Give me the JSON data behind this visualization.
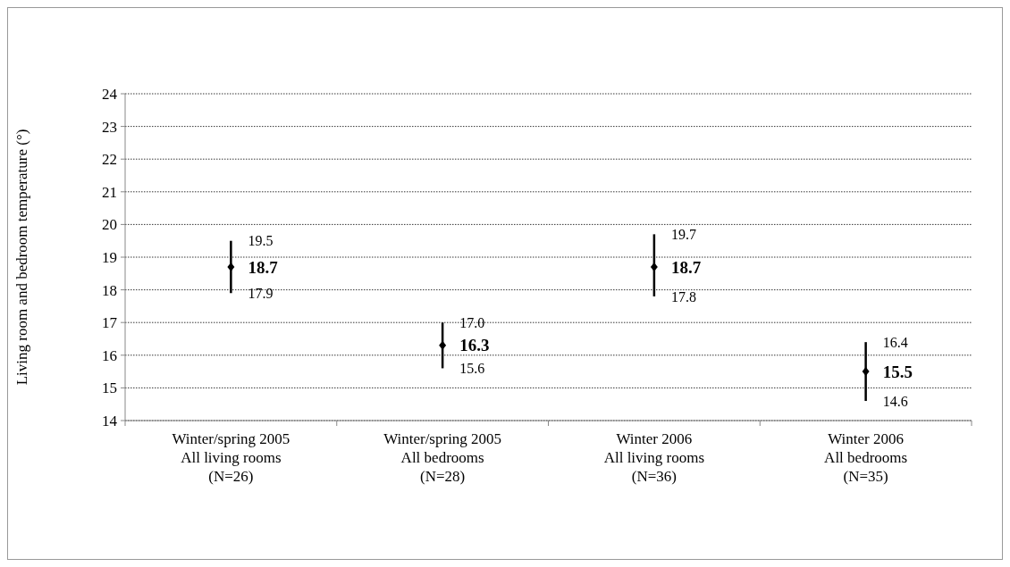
{
  "chart_data": {
    "type": "scatter",
    "categories": [
      "Winter/spring 2005\nAll living rooms\n(N=26)",
      "Winter/spring 2005\nAll bedrooms\n(N=28)",
      "Winter 2006\nAll living rooms\n(N=36)",
      "Winter 2006\nAll bedrooms\n(N=35)"
    ],
    "values": [
      18.7,
      16.3,
      18.7,
      15.5
    ],
    "errors": [
      [
        17.9,
        19.5
      ],
      [
        15.6,
        17.0
      ],
      [
        17.8,
        19.7
      ],
      [
        14.6,
        16.4
      ]
    ],
    "color": "#000000",
    "marker": "diamond",
    "data_labels": true,
    "annotations": [
      {
        "text": "19.5",
        "x": "Winter/spring 2005\nAll living rooms\n(N=26)",
        "y": 19.5
      },
      {
        "text": "17.9",
        "x": "Winter/spring 2005\nAll living rooms\n(N=26)",
        "y": 17.9
      },
      {
        "text": "17.0",
        "x": "Winter/spring 2005\nAll bedrooms\n(N=28)",
        "y": 17.0
      },
      {
        "text": "15.6",
        "x": "Winter/spring 2005\nAll bedrooms\n(N=28)",
        "y": 15.6
      },
      {
        "text": "19.7",
        "x": "Winter 2006\nAll living rooms\n(N=36)",
        "y": 19.7
      },
      {
        "text": "17.8",
        "x": "Winter 2006\nAll living rooms\n(N=36)",
        "y": 17.8
      },
      {
        "text": "16.4",
        "x": "Winter 2006\nAll bedrooms\n(N=35)",
        "y": 16.4
      },
      {
        "text": "14.6",
        "x": "Winter 2006\nAll bedrooms\n(N=35)",
        "y": 14.6
      }
    ],
    "ylabel": "Living room and bedroom temperature (°)",
    "ylim": [
      14,
      24
    ],
    "yticks": [
      14,
      15,
      16,
      17,
      18,
      19,
      20,
      21,
      22,
      23,
      24
    ],
    "grid": "y"
  }
}
